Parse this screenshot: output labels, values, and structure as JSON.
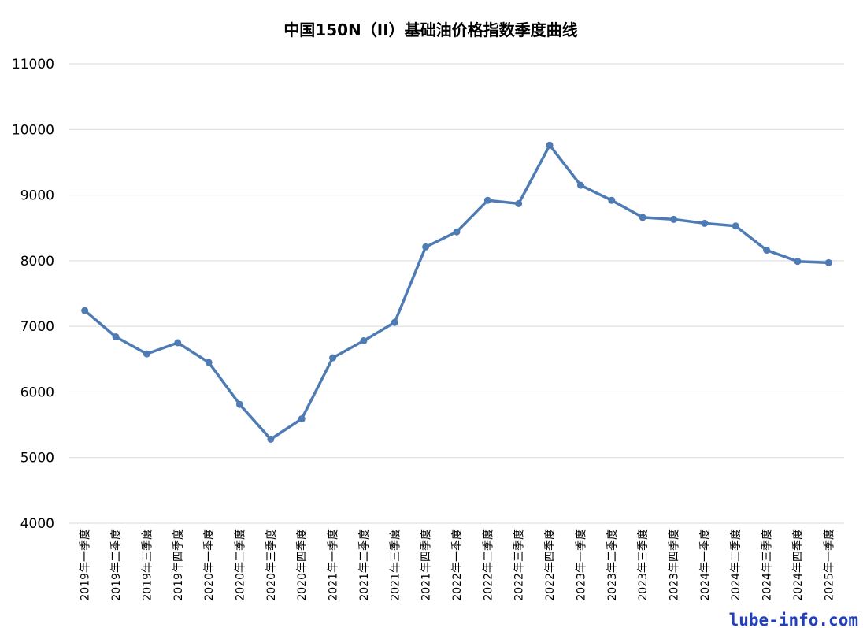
{
  "chart_data": {
    "type": "line",
    "title": "中国150N（II）基础油价格指数季度曲线",
    "xlabel": "",
    "ylabel": "",
    "categories": [
      "2019年一季度",
      "2019年二季度",
      "2019年三季度",
      "2019年四季度",
      "2020年一季度",
      "2020年二季度",
      "2020年三季度",
      "2020年四季度",
      "2021年一季度",
      "2021年二季度",
      "2021年三季度",
      "2021年四季度",
      "2022年一季度",
      "2022年二季度",
      "2022年三季度",
      "2022年四季度",
      "2023年一季度",
      "2023年二季度",
      "2023年三季度",
      "2023年四季度",
      "2024年一季度",
      "2024年二季度",
      "2024年三季度",
      "2024年四季度",
      "2025年一季度"
    ],
    "series": [
      {
        "values": [
          7240,
          6840,
          6580,
          6750,
          6450,
          5810,
          5280,
          5590,
          6520,
          6780,
          7060,
          8210,
          8440,
          8920,
          8870,
          9760,
          9150,
          8920,
          8660,
          8630,
          8570,
          8530,
          8160,
          7990,
          7970
        ]
      }
    ],
    "ylim": [
      4000,
      11000
    ],
    "yticks": [
      4000,
      5000,
      6000,
      7000,
      8000,
      9000,
      10000,
      11000
    ],
    "grid": true,
    "legend": "none",
    "line_color": "#4e7bb4",
    "grid_color": "#d9d9d9"
  },
  "watermark": {
    "text": "lube-info.com",
    "color": "#1f3fbf"
  }
}
